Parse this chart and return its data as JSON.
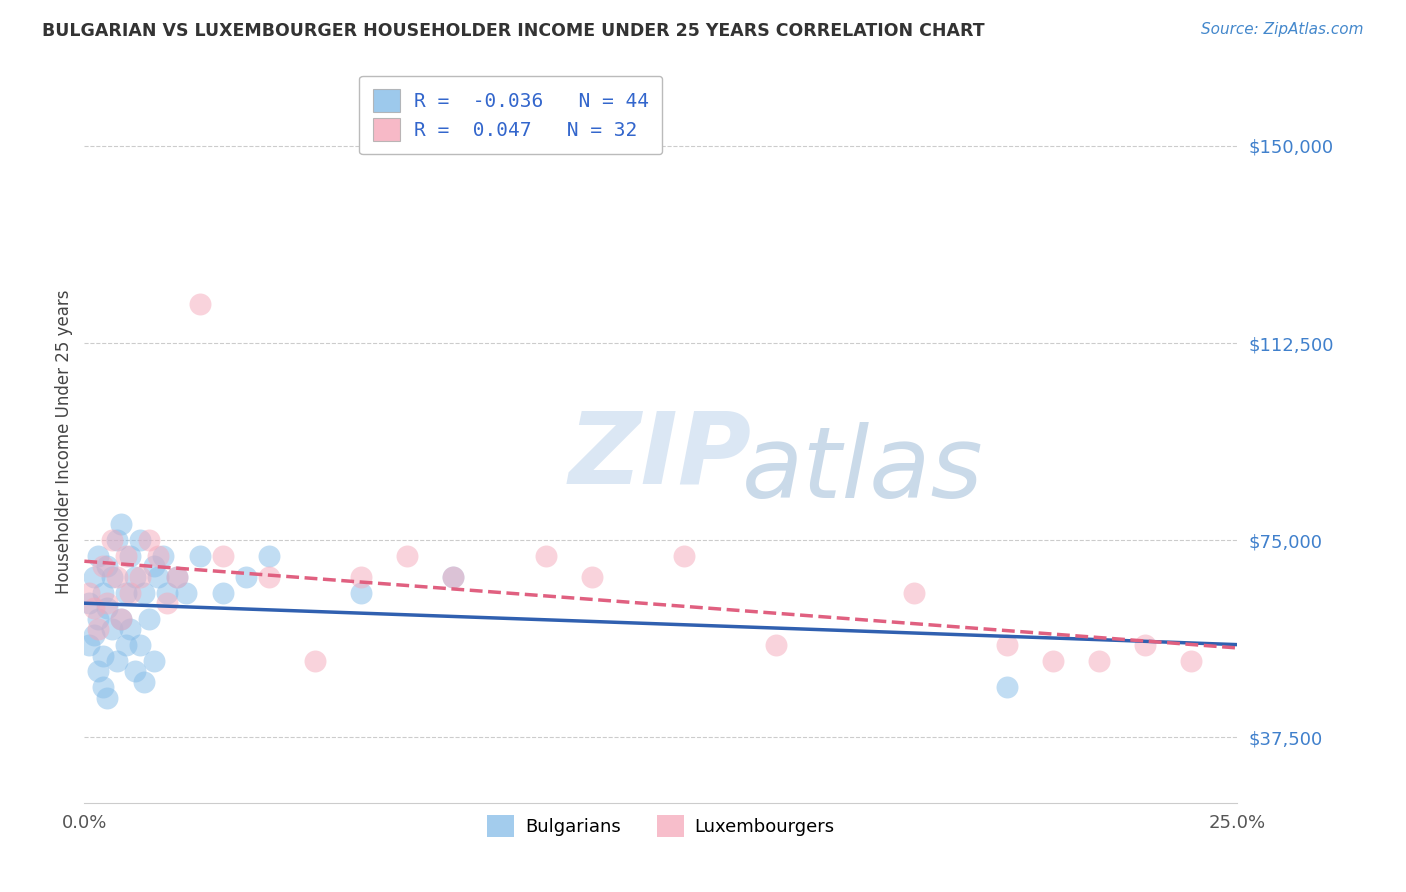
{
  "title": "BULGARIAN VS LUXEMBOURGER HOUSEHOLDER INCOME UNDER 25 YEARS CORRELATION CHART",
  "source": "Source: ZipAtlas.com",
  "ylabel": "Householder Income Under 25 years",
  "xmin": 0.0,
  "xmax": 0.25,
  "ymin": 25000,
  "ymax": 162500,
  "yticks": [
    37500,
    75000,
    112500,
    150000
  ],
  "ytick_labels": [
    "$37,500",
    "$75,000",
    "$112,500",
    "$150,000"
  ],
  "xticks": [
    0.0,
    0.05,
    0.1,
    0.15,
    0.2,
    0.25
  ],
  "xtick_labels": [
    "0.0%",
    "",
    "",
    "",
    "",
    "25.0%"
  ],
  "bulgarian_R": -0.036,
  "bulgarian_N": 44,
  "luxembourger_R": 0.047,
  "luxembourger_N": 32,
  "bulgarian_color": "#85bce8",
  "luxembourger_color": "#f5a8ba",
  "bulgarian_line_color": "#3060b0",
  "luxembourger_line_color": "#e06080",
  "bg_color": "#ffffff",
  "bulgarians_x": [
    0.001,
    0.001,
    0.002,
    0.002,
    0.003,
    0.003,
    0.003,
    0.004,
    0.004,
    0.004,
    0.005,
    0.005,
    0.005,
    0.006,
    0.006,
    0.007,
    0.007,
    0.008,
    0.008,
    0.009,
    0.009,
    0.01,
    0.01,
    0.011,
    0.011,
    0.012,
    0.012,
    0.013,
    0.013,
    0.014,
    0.015,
    0.015,
    0.016,
    0.017,
    0.018,
    0.02,
    0.022,
    0.025,
    0.03,
    0.035,
    0.04,
    0.06,
    0.08,
    0.2
  ],
  "bulgarians_y": [
    63000,
    55000,
    68000,
    57000,
    72000,
    60000,
    50000,
    65000,
    53000,
    47000,
    70000,
    62000,
    45000,
    68000,
    58000,
    75000,
    52000,
    78000,
    60000,
    65000,
    55000,
    72000,
    58000,
    68000,
    50000,
    75000,
    55000,
    65000,
    48000,
    60000,
    70000,
    52000,
    68000,
    72000,
    65000,
    68000,
    65000,
    72000,
    65000,
    68000,
    72000,
    65000,
    68000,
    47000
  ],
  "luxembourgers_x": [
    0.001,
    0.002,
    0.003,
    0.004,
    0.005,
    0.006,
    0.007,
    0.008,
    0.009,
    0.01,
    0.012,
    0.014,
    0.016,
    0.018,
    0.02,
    0.025,
    0.03,
    0.04,
    0.05,
    0.06,
    0.07,
    0.08,
    0.1,
    0.11,
    0.13,
    0.15,
    0.18,
    0.2,
    0.21,
    0.22,
    0.23,
    0.24
  ],
  "luxembourgers_y": [
    65000,
    62000,
    58000,
    70000,
    63000,
    75000,
    68000,
    60000,
    72000,
    65000,
    68000,
    75000,
    72000,
    63000,
    68000,
    120000,
    72000,
    68000,
    52000,
    68000,
    72000,
    68000,
    72000,
    68000,
    72000,
    55000,
    65000,
    55000,
    52000,
    52000,
    55000,
    52000
  ],
  "watermark_zip": "ZIP",
  "watermark_atlas": "atlas"
}
